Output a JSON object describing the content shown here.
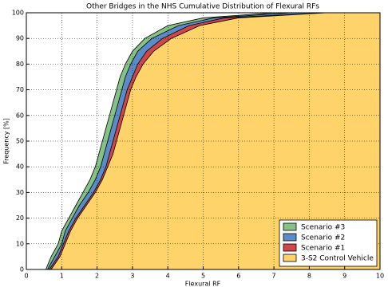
{
  "chart_data": {
    "type": "cdf_area",
    "title": "Other Bridges in the NHS Cumulative Distribution of Flexural RFs",
    "x_label": "Flexural RF",
    "y_label": "Frequency [%]",
    "xlim": [
      0,
      10
    ],
    "ylim": [
      0,
      100
    ],
    "xticks": [
      0,
      1,
      2,
      3,
      4,
      5,
      6,
      7,
      8,
      9,
      10
    ],
    "yticks": [
      0,
      10,
      20,
      30,
      40,
      50,
      60,
      70,
      80,
      90,
      100
    ],
    "grid": true,
    "legend": "lower right",
    "series": [
      {
        "name": "Scenario #3",
        "color": "#86c286",
        "x": [
          0.55,
          0.7,
          0.9,
          1.0,
          1.2,
          1.4,
          1.6,
          1.8,
          1.95,
          2.05,
          2.15,
          2.25,
          2.35,
          2.45,
          2.55,
          2.65,
          2.8,
          3.0,
          3.35,
          4.0,
          5.0,
          7.0
        ],
        "values": [
          0,
          5,
          10,
          15,
          20,
          25,
          30,
          35,
          40,
          45,
          50,
          55,
          60,
          65,
          70,
          75,
          80,
          85,
          90,
          95,
          98,
          100
        ]
      },
      {
        "name": "Scenario #2",
        "color": "#5a8cc8",
        "x": [
          0.6,
          0.8,
          1.0,
          1.1,
          1.3,
          1.5,
          1.75,
          1.95,
          2.1,
          2.2,
          2.3,
          2.4,
          2.5,
          2.6,
          2.7,
          2.8,
          2.95,
          3.15,
          3.55,
          4.3,
          5.3,
          7.5
        ],
        "values": [
          0,
          5,
          10,
          15,
          20,
          25,
          30,
          35,
          40,
          45,
          50,
          55,
          60,
          65,
          70,
          75,
          80,
          85,
          90,
          95,
          98,
          100
        ]
      },
      {
        "name": "Scenario #1",
        "color": "#d0474a",
        "x": [
          0.65,
          0.9,
          1.05,
          1.2,
          1.4,
          1.65,
          1.9,
          2.1,
          2.25,
          2.35,
          2.45,
          2.55,
          2.65,
          2.75,
          2.85,
          3.0,
          3.15,
          3.4,
          3.85,
          4.6,
          5.6,
          8.5
        ],
        "values": [
          0,
          5,
          10,
          15,
          20,
          25,
          30,
          35,
          40,
          45,
          50,
          55,
          60,
          65,
          70,
          75,
          80,
          85,
          90,
          95,
          98,
          100
        ]
      },
      {
        "name": "3-S2 Control Vehicle",
        "color": "#fdd36a",
        "x": [
          0.7,
          0.95,
          1.1,
          1.25,
          1.45,
          1.7,
          1.95,
          2.15,
          2.3,
          2.45,
          2.55,
          2.65,
          2.75,
          2.85,
          2.95,
          3.1,
          3.3,
          3.6,
          4.1,
          4.9,
          6.0,
          8.5
        ],
        "values": [
          0,
          5,
          10,
          15,
          20,
          25,
          30,
          35,
          40,
          45,
          50,
          55,
          60,
          65,
          70,
          75,
          80,
          85,
          90,
          95,
          98,
          100
        ]
      }
    ]
  }
}
